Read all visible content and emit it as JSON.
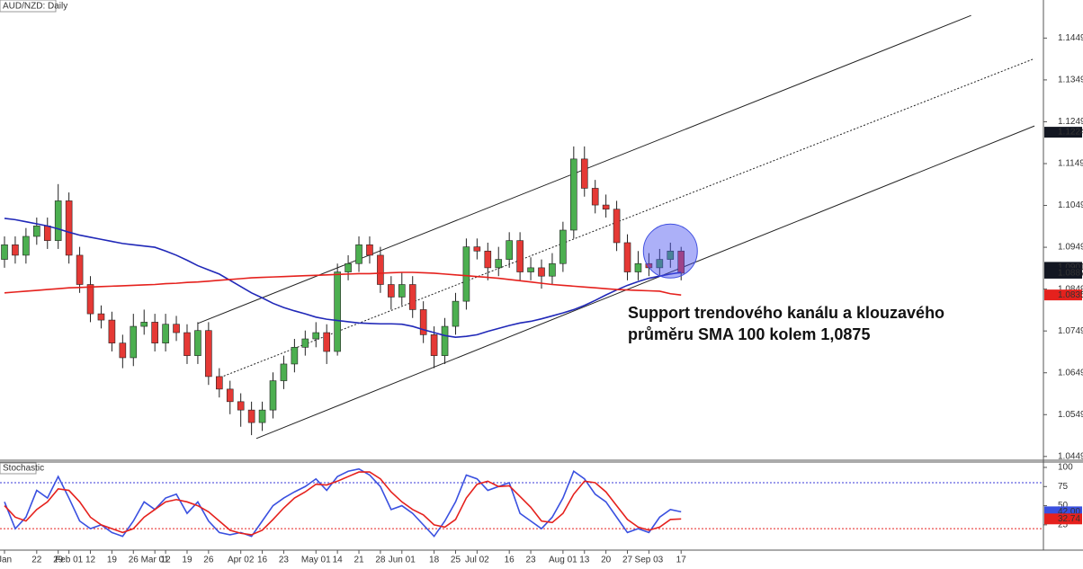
{
  "chart_data": {
    "type": "candlestick",
    "title": "AUD/NZD: Daily",
    "categories": [
      "Jan",
      null,
      null,
      "22",
      null,
      "29",
      "Feb 01",
      null,
      "12",
      null,
      "19",
      null,
      "26",
      null,
      "Mar 01",
      "12",
      null,
      "19",
      null,
      "26",
      null,
      null,
      "Apr 02",
      null,
      "16",
      null,
      "23",
      null,
      null,
      "May 01",
      null,
      "14",
      null,
      "21",
      null,
      "28",
      null,
      "Jun 01",
      null,
      null,
      "18",
      null,
      "25",
      null,
      "Jul 02",
      null,
      null,
      "16",
      null,
      "23",
      null,
      null,
      "Aug 01",
      null,
      "13",
      null,
      "20",
      null,
      "27",
      null,
      "Sep 03",
      null,
      null,
      "17"
    ],
    "open": [
      1.092,
      1.0955,
      1.093,
      1.0975,
      1.1,
      1.0965,
      1.106,
      1.093,
      1.086,
      1.079,
      1.0775,
      1.072,
      1.0685,
      1.076,
      1.077,
      1.072,
      1.0765,
      1.0745,
      1.069,
      1.075,
      1.064,
      1.061,
      1.058,
      1.056,
      1.053,
      1.056,
      1.063,
      1.067,
      1.071,
      1.073,
      1.0745,
      1.07,
      1.089,
      1.091,
      1.0955,
      1.093,
      1.086,
      1.083,
      1.086,
      1.08,
      1.074,
      1.069,
      1.076,
      1.082,
      1.095,
      1.094,
      1.09,
      1.092,
      1.0965,
      1.089,
      1.09,
      1.088,
      1.091,
      1.099,
      1.116,
      1.109,
      1.105,
      1.104,
      1.096,
      1.089,
      1.091,
      1.09,
      1.092,
      1.094
    ],
    "high": [
      1.0975,
      1.0975,
      1.0995,
      1.102,
      1.102,
      1.11,
      1.108,
      1.095,
      1.088,
      1.081,
      1.0795,
      1.074,
      1.079,
      1.08,
      1.079,
      1.079,
      1.0785,
      1.0765,
      1.077,
      1.077,
      1.066,
      1.063,
      1.06,
      1.058,
      1.058,
      1.065,
      1.069,
      1.073,
      1.075,
      1.077,
      1.0765,
      1.091,
      1.093,
      1.0975,
      1.0975,
      1.095,
      1.088,
      1.089,
      1.088,
      1.082,
      1.076,
      1.078,
      1.084,
      1.097,
      1.097,
      1.096,
      1.095,
      1.0985,
      1.0985,
      1.0925,
      1.092,
      1.0935,
      1.101,
      1.119,
      1.119,
      1.111,
      1.1075,
      1.106,
      1.098,
      1.094,
      1.0935,
      1.0945,
      1.096,
      1.095
    ],
    "low": [
      1.09,
      1.091,
      1.091,
      1.0955,
      1.0945,
      1.0945,
      1.091,
      1.084,
      1.077,
      1.0755,
      1.07,
      1.066,
      1.0665,
      1.074,
      1.07,
      1.07,
      1.0725,
      1.067,
      1.067,
      1.062,
      1.059,
      1.055,
      1.052,
      1.05,
      1.051,
      1.054,
      1.061,
      1.065,
      1.069,
      1.071,
      1.067,
      1.069,
      1.087,
      1.089,
      1.091,
      1.084,
      1.08,
      1.081,
      1.078,
      1.072,
      1.066,
      1.067,
      1.074,
      1.08,
      1.092,
      1.087,
      1.088,
      1.09,
      1.087,
      1.087,
      1.085,
      1.086,
      1.089,
      1.097,
      1.107,
      1.103,
      1.102,
      1.094,
      1.087,
      1.087,
      1.088,
      1.088,
      1.09,
      1.087
    ],
    "close": [
      1.0955,
      1.093,
      1.0975,
      1.1,
      1.0965,
      1.106,
      1.093,
      1.086,
      1.079,
      1.0775,
      1.072,
      1.0685,
      1.076,
      1.077,
      1.072,
      1.0765,
      1.0745,
      1.069,
      1.075,
      1.064,
      1.061,
      1.058,
      1.056,
      1.053,
      1.056,
      1.063,
      1.067,
      1.071,
      1.073,
      1.0745,
      1.07,
      1.089,
      1.091,
      1.0955,
      1.093,
      1.086,
      1.083,
      1.086,
      1.08,
      1.074,
      1.069,
      1.076,
      1.082,
      1.095,
      1.094,
      1.09,
      1.092,
      1.0965,
      1.089,
      1.09,
      1.088,
      1.091,
      1.099,
      1.116,
      1.109,
      1.105,
      1.104,
      1.096,
      1.089,
      1.091,
      1.09,
      1.092,
      1.094,
      1.0887
    ],
    "up_color": "#4caf50",
    "down_color": "#e53935",
    "ylim": [
      1.044,
      1.154
    ],
    "yticks": [
      1.0449,
      1.0549,
      1.0649,
      1.0749,
      1.0849,
      1.0949,
      1.1049,
      1.1149,
      1.1249,
      1.1349,
      1.1449
    ],
    "moving_averages": [
      {
        "color": "#2028b8",
        "values": [
          1.1018,
          1.1015,
          1.101,
          1.1005,
          1.1,
          1.0993,
          1.0985,
          1.0978,
          1.0973,
          1.0968,
          1.0963,
          1.0958,
          1.0955,
          1.0952,
          1.0949,
          1.094,
          1.093,
          1.0918,
          1.0905,
          1.0895,
          1.0885,
          1.087,
          1.0855,
          1.084,
          1.0828,
          1.0815,
          1.0805,
          1.0797,
          1.079,
          1.0782,
          1.0777,
          1.0774,
          1.0771,
          1.0768,
          1.0767,
          1.0766,
          1.0766,
          1.0765,
          1.076,
          1.0752,
          1.0745,
          1.0738,
          1.0734,
          1.0736,
          1.074,
          1.0748,
          1.0755,
          1.0762,
          1.0768,
          1.0772,
          1.0778,
          1.0785,
          1.0792,
          1.08,
          1.081,
          1.0822,
          1.0835,
          1.0847,
          1.0858,
          1.0867,
          1.0875,
          1.088,
          1.0885,
          1.0889
        ]
      },
      {
        "color": "#e5211d",
        "values": [
          1.084,
          1.0842,
          1.0844,
          1.0846,
          1.0848,
          1.085,
          1.0852,
          1.0853,
          1.0854,
          1.0855,
          1.0856,
          1.0857,
          1.0858,
          1.0859,
          1.086,
          1.0862,
          1.0863,
          1.0865,
          1.0866,
          1.0868,
          1.087,
          1.0872,
          1.0874,
          1.0876,
          1.0877,
          1.0878,
          1.0879,
          1.088,
          1.0881,
          1.0882,
          1.0883,
          1.0884,
          1.0885,
          1.0886,
          1.0886,
          1.0887,
          1.0888,
          1.0889,
          1.0889,
          1.0888,
          1.0887,
          1.0885,
          1.0883,
          1.0881,
          1.0879,
          1.0877,
          1.0875,
          1.0872,
          1.0869,
          1.0866,
          1.0863,
          1.086,
          1.0858,
          1.0856,
          1.0854,
          1.0852,
          1.085,
          1.0848,
          1.0847,
          1.0846,
          1.0845,
          1.0844,
          1.0838,
          1.0835
        ]
      }
    ],
    "channel": [
      {
        "style": "solid",
        "x": [
          18.0,
          90.0
        ],
        "y": [
          1.0767,
          1.1503
        ]
      },
      {
        "style": "dotted",
        "x": [
          20.1,
          95.9
        ],
        "y": [
          1.0638,
          1.14
        ]
      },
      {
        "style": "solid",
        "x": [
          23.45,
          95.9
        ],
        "y": [
          1.0492,
          1.1239
        ]
      }
    ],
    "price_markers": [
      {
        "value": 1.1224,
        "color": "#131722"
      },
      {
        "value": 1.0901,
        "color": "#131722"
      },
      {
        "value": 1.0887,
        "color": "#131722"
      },
      {
        "value": 1.0835,
        "color": "#e5211d"
      }
    ],
    "annotation": [
      "Support trendového kanálu a klouzavého",
      "průměru SMA 100 kolem 1,0875"
    ],
    "stochastic": {
      "title": "Stochastic",
      "ylim": [
        -8,
        107
      ],
      "yticks": [
        25,
        50,
        75,
        100
      ],
      "levels": [
        {
          "value": 80,
          "color": "#3a3ad8"
        },
        {
          "value": 20,
          "color": "#e5211d"
        }
      ],
      "series": [
        {
          "color": "#3a50e0",
          "last_label": "42.00",
          "values": [
            55,
            20,
            35,
            70,
            60,
            88,
            60,
            30,
            20,
            25,
            15,
            10,
            30,
            55,
            45,
            60,
            65,
            40,
            55,
            30,
            15,
            12,
            15,
            10,
            30,
            50,
            60,
            68,
            75,
            85,
            70,
            88,
            95,
            98,
            90,
            75,
            45,
            50,
            40,
            25,
            10,
            30,
            55,
            90,
            85,
            70,
            75,
            80,
            40,
            30,
            20,
            35,
            60,
            95,
            85,
            65,
            55,
            35,
            15,
            20,
            15,
            35,
            45,
            42
          ]
        },
        {
          "color": "#e5211d",
          "last_label": "32.74",
          "values": [
            50,
            35,
            30,
            45,
            55,
            72,
            70,
            55,
            35,
            25,
            20,
            15,
            20,
            35,
            45,
            55,
            58,
            55,
            50,
            42,
            30,
            18,
            14,
            12,
            18,
            32,
            47,
            60,
            68,
            78,
            77,
            82,
            88,
            94,
            94,
            85,
            68,
            55,
            45,
            38,
            25,
            22,
            32,
            60,
            78,
            82,
            75,
            76,
            62,
            48,
            30,
            28,
            40,
            65,
            82,
            80,
            68,
            50,
            32,
            22,
            18,
            22,
            32,
            32.74
          ]
        }
      ]
    }
  }
}
